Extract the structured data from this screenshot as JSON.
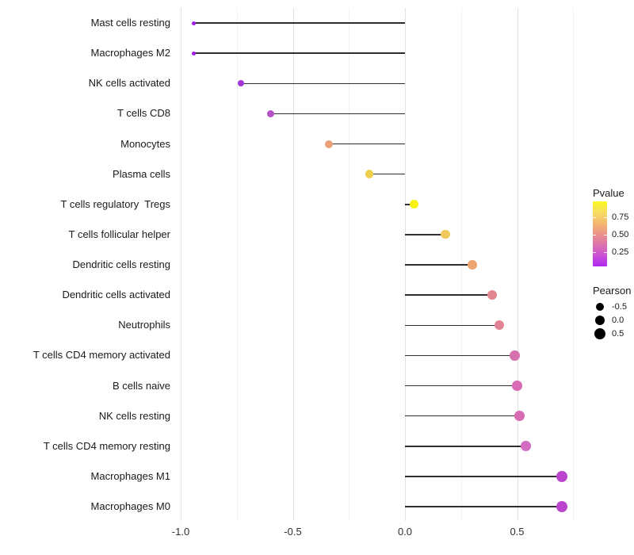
{
  "chart_data": {
    "type": "scatter",
    "style": "lollipop",
    "title": "",
    "xlabel": "",
    "ylabel": "",
    "grid": "on",
    "legend_position": "right",
    "baseline_x": 0.0,
    "xlim": [
      -1.02,
      0.99
    ],
    "x_ticks": [
      "-1.0",
      "-0.5",
      "0.0",
      "0.5"
    ],
    "x_tick_values": [
      -1.0,
      -0.5,
      0.0,
      0.5
    ],
    "x_minor_gridlines": [
      -0.75,
      -0.25,
      0.25,
      0.75
    ],
    "points": [
      {
        "label": "Mast cells resting",
        "pearson": -0.94,
        "color": "#9D1FE3",
        "radius": 2.5
      },
      {
        "label": "Macrophages M2",
        "pearson": -0.94,
        "color": "#9D1FE3",
        "radius": 2.5
      },
      {
        "label": "NK cells activated",
        "pearson": -0.73,
        "color": "#A337D4",
        "radius": 4.0
      },
      {
        "label": "T cells CD8",
        "pearson": -0.6,
        "color": "#B751C7",
        "radius": 4.5
      },
      {
        "label": "Monocytes",
        "pearson": -0.34,
        "color": "#ECA077",
        "radius": 5.0
      },
      {
        "label": "Plasma cells",
        "pearson": -0.16,
        "color": "#EFD04A",
        "radius": 5.2
      },
      {
        "label": "T cells regulatory  Tregs",
        "pearson": 0.04,
        "color": "#F8F112",
        "radius": 5.4
      },
      {
        "label": "T cells follicular helper",
        "pearson": 0.18,
        "color": "#F0C95C",
        "radius": 5.6
      },
      {
        "label": "Dendritic cells resting",
        "pearson": 0.3,
        "color": "#EDA671",
        "radius": 5.8
      },
      {
        "label": "Dendritic cells activated",
        "pearson": 0.39,
        "color": "#E2878F",
        "radius": 6.0
      },
      {
        "label": "Neutrophils",
        "pearson": 0.42,
        "color": "#E28292",
        "radius": 6.0
      },
      {
        "label": "T cells CD4 memory activated",
        "pearson": 0.49,
        "color": "#D671AE",
        "radius": 6.2
      },
      {
        "label": "B cells naive",
        "pearson": 0.5,
        "color": "#D76BB4",
        "radius": 6.2
      },
      {
        "label": "NK cells resting",
        "pearson": 0.51,
        "color": "#D76BB4",
        "radius": 6.3
      },
      {
        "label": "T cells CD4 memory resting",
        "pearson": 0.54,
        "color": "#D26BC2",
        "radius": 6.4
      },
      {
        "label": "Macrophages M1",
        "pearson": 0.7,
        "color": "#BB44CF",
        "radius": 7.3
      },
      {
        "label": "Macrophages M0",
        "pearson": 0.7,
        "color": "#BB44CF",
        "radius": 7.3
      }
    ],
    "legend_pvalue": {
      "title": "Pvalue",
      "tick_labels": [
        "0.75",
        "0.50",
        "0.25"
      ],
      "tick_values": [
        0.75,
        0.5,
        0.25
      ],
      "bar_value_range": [
        0.97,
        0.05
      ],
      "gradient_top_to_bottom": [
        "#FAF920",
        "#F7DE63",
        "#F3B96F",
        "#EC9389",
        "#DE73AD",
        "#CB50D6",
        "#AE28F0"
      ]
    },
    "legend_pearson": {
      "title": "Pearson",
      "dot_color": "#000000",
      "entries": [
        {
          "label": "-0.5",
          "radius": 5.0
        },
        {
          "label": "0.0",
          "radius": 6.0
        },
        {
          "label": "0.5",
          "radius": 7.0
        }
      ]
    },
    "colors": {
      "stem": "#2e2e2e",
      "grid_major": "#e3e3e3",
      "grid_minor": "#f2f2f2",
      "label_text": "#1a1a1a",
      "axis_text": "#303030",
      "background": "#ffffff"
    }
  }
}
